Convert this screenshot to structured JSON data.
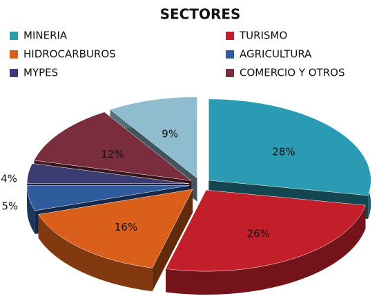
{
  "chart_data": {
    "type": "pie3d",
    "title": "SECTORES",
    "categories": [
      "MINERIA",
      "TURISMO",
      "HIDROCARBUROS",
      "AGRICULTURA",
      "MYPES",
      "COMERCIO Y OTROS",
      null
    ],
    "values": [
      28,
      26,
      16,
      5,
      4,
      12,
      9
    ],
    "value_labels": [
      "28%",
      "26%",
      "16%",
      "5%",
      "4%",
      "12%",
      "9%"
    ],
    "colors": [
      "#2b9bb4",
      "#c31f2b",
      "#d95f1b",
      "#2f5c9d",
      "#3b3c72",
      "#7a2d3d",
      "#8fbccf"
    ],
    "legend": "top"
  }
}
